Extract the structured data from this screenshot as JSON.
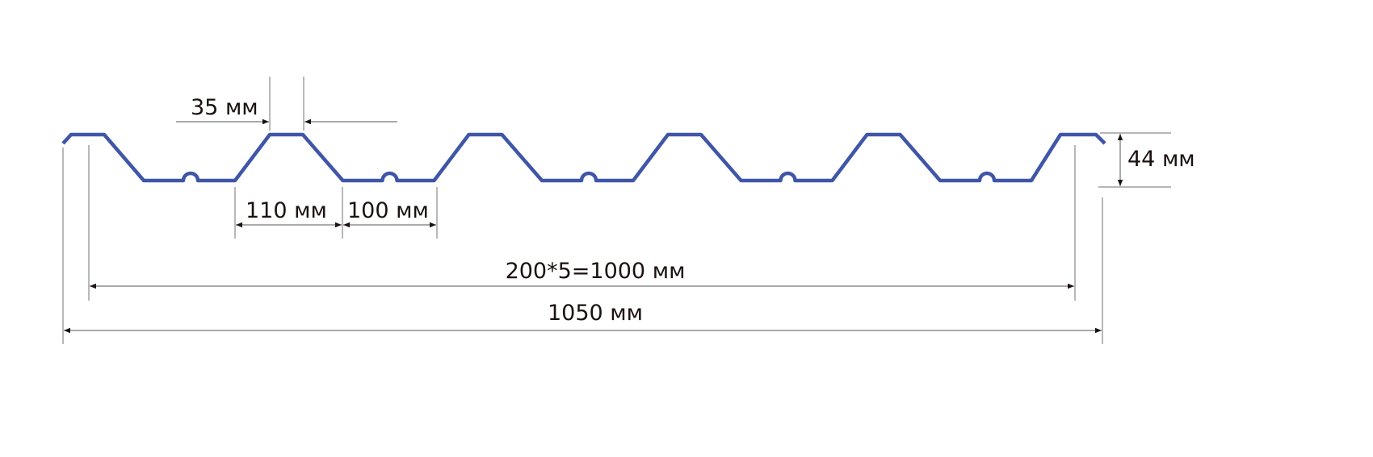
{
  "colors": {
    "profile": "#3f56a8",
    "dimension_text": "#1a1210"
  },
  "labels": {
    "top_width": "35 мм",
    "slope_width": "110 мм",
    "bottom_width": "100 мм",
    "pitch_total": "200*5=1000 мм",
    "overall_width": "1050 мм",
    "height": "44 мм"
  }
}
